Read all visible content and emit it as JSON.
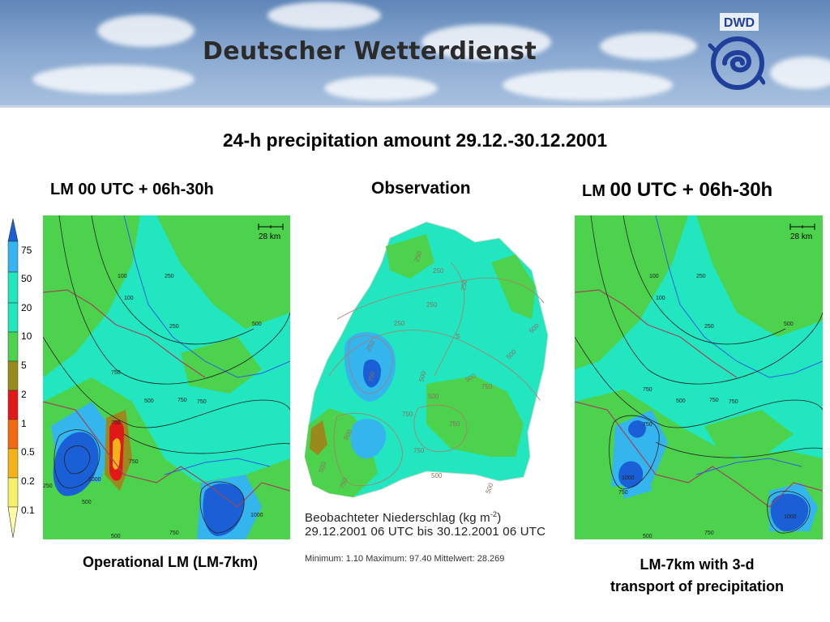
{
  "header": {
    "org_title": "Deutscher Wetterdienst",
    "logo_text": "DWD",
    "accent_color": "#1f3f9a"
  },
  "main_title": "24-h precipitation amount 29.12.-30.12.2001",
  "panels": {
    "left": {
      "title": "LM 00 UTC + 06h-30h",
      "caption": "Operational LM (LM-7km)",
      "scale_label": "28 km"
    },
    "middle": {
      "title": "Observation",
      "caption_line1_prefix": "Beobachteter Niederschlag (kg m",
      "caption_line1_sup": "-2",
      "caption_line1_suffix": ")",
      "caption_line2": "29.12.2001 06 UTC bis 30.12.2001 06 UTC",
      "stats": "Minimum:  1.10   Maximum:  97.40   Mittelwert:  28.269"
    },
    "right": {
      "title_small": "LM",
      "title_big": "00 UTC + 06h-30h",
      "caption_line1": "LM-7km with 3-d",
      "caption_line2": "transport of precipitation",
      "scale_label": "28 km"
    }
  },
  "legend": {
    "labels": [
      "75",
      "50",
      "20",
      "10",
      "5",
      "2",
      "1",
      "0.5",
      "0.2",
      "0.1"
    ],
    "colors": [
      "#1b5fd6",
      "#35b5ee",
      "#21e6c0",
      "#4dd24d",
      "#2fc12f",
      "#9a8a1e",
      "#e01818",
      "#f06a10",
      "#f2b31a",
      "#f7f06a",
      "#fdfca6"
    ]
  },
  "contour_labels": {
    "left": [
      "100",
      "100",
      "250",
      "250",
      "500",
      "750",
      "500",
      "750",
      "750",
      "750",
      "1000",
      "250",
      "500",
      "750",
      "1000",
      "500",
      "750"
    ],
    "right": [
      "100",
      "100",
      "250",
      "250",
      "500",
      "750",
      "500",
      "750",
      "750",
      "750",
      "1000",
      "750",
      "1000",
      "500",
      "750"
    ],
    "middle": [
      "250",
      "250",
      "250",
      "250",
      "250",
      "250",
      "500",
      "500",
      "500",
      "500",
      "500",
      "750",
      "750",
      "750",
      "750",
      "750",
      "500",
      "500",
      "500",
      "750",
      "500",
      "S"
    ]
  }
}
